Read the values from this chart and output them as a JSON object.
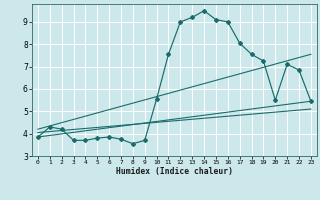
{
  "xlabel": "Humidex (Indice chaleur)",
  "bg_color": "#cce8ea",
  "grid_color": "#ffffff",
  "line_color": "#1a6b6b",
  "xlim": [
    -0.5,
    23.5
  ],
  "ylim": [
    3.0,
    9.8
  ],
  "xticks": [
    0,
    1,
    2,
    3,
    4,
    5,
    6,
    7,
    8,
    9,
    10,
    11,
    12,
    13,
    14,
    15,
    16,
    17,
    18,
    19,
    20,
    21,
    22,
    23
  ],
  "yticks": [
    3,
    4,
    5,
    6,
    7,
    8,
    9
  ],
  "curve1_x": [
    0,
    1,
    2,
    3,
    4,
    5,
    6,
    7,
    8,
    9,
    10,
    11,
    12,
    13,
    14,
    15,
    16,
    17,
    18,
    19,
    20,
    21,
    22,
    23
  ],
  "curve1_y": [
    3.85,
    4.3,
    4.2,
    3.7,
    3.7,
    3.8,
    3.85,
    3.75,
    3.55,
    3.7,
    5.55,
    7.55,
    9.0,
    9.2,
    9.5,
    9.1,
    9.0,
    8.05,
    7.55,
    7.25,
    5.5,
    7.1,
    6.85,
    5.45
  ],
  "line1_x": [
    0,
    23
  ],
  "line1_y": [
    3.85,
    5.45
  ],
  "line2_x": [
    0,
    23
  ],
  "line2_y": [
    4.2,
    7.55
  ],
  "line3_x": [
    0,
    23
  ],
  "line3_y": [
    4.05,
    5.1
  ]
}
